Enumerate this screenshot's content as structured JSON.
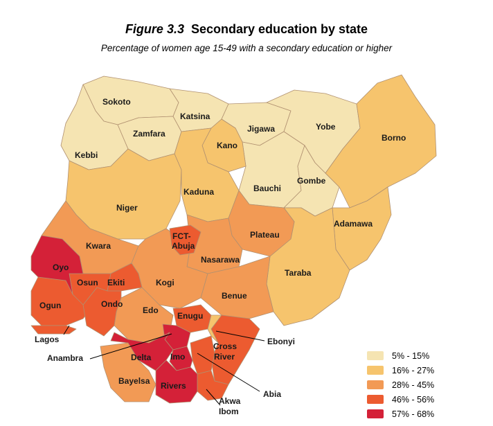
{
  "figure": {
    "number": "Figure 3.3",
    "title": "Secondary education by state",
    "subtitle": "Percentage of women age 15-49 with a secondary education or higher"
  },
  "colors": {
    "c1": "#f5e4b2",
    "c2": "#f6c46d",
    "c3": "#f29a55",
    "c4": "#ec5b30",
    "c5": "#d42138",
    "border": "#b09070"
  },
  "legend": [
    {
      "label": "5% - 15%",
      "color": "#f5e4b2"
    },
    {
      "label": "16% - 27%",
      "color": "#f6c46d"
    },
    {
      "label": "28% - 45%",
      "color": "#f29a55"
    },
    {
      "label": "46% - 56%",
      "color": "#ec5b30"
    },
    {
      "label": "57% - 68%",
      "color": "#d42138"
    }
  ],
  "states": {
    "sokoto": "Sokoto",
    "katsina": "Katsina",
    "zamfara": "Zamfara",
    "jigawa": "Jigawa",
    "yobe": "Yobe",
    "borno": "Borno",
    "kebbi": "Kebbi",
    "kano": "Kano",
    "gombe": "Gombe",
    "bauchi": "Bauchi",
    "kaduna": "Kaduna",
    "niger": "Niger",
    "adamawa": "Adamawa",
    "plateau": "Plateau",
    "fct_1": "FCT-",
    "fct_2": "Abuja",
    "kwara": "Kwara",
    "nasarawa": "Nasarawa",
    "oyo": "Oyo",
    "taraba": "Taraba",
    "osun": "Osun",
    "ekiti": "Ekiti",
    "kogi": "Kogi",
    "benue": "Benue",
    "ogun": "Ogun",
    "ondo": "Ondo",
    "edo": "Edo",
    "enugu": "Enugu",
    "lagos": "Lagos",
    "ebonyi": "Ebonyi",
    "cross_1": "Cross",
    "cross_2": "River",
    "anambra": "Anambra",
    "delta": "Delta",
    "imo": "Imo",
    "bayelsa": "Bayelsa",
    "rivers": "Rivers",
    "abia": "Abia",
    "akwa_1": "Akwa",
    "akwa_2": "Ibom"
  }
}
